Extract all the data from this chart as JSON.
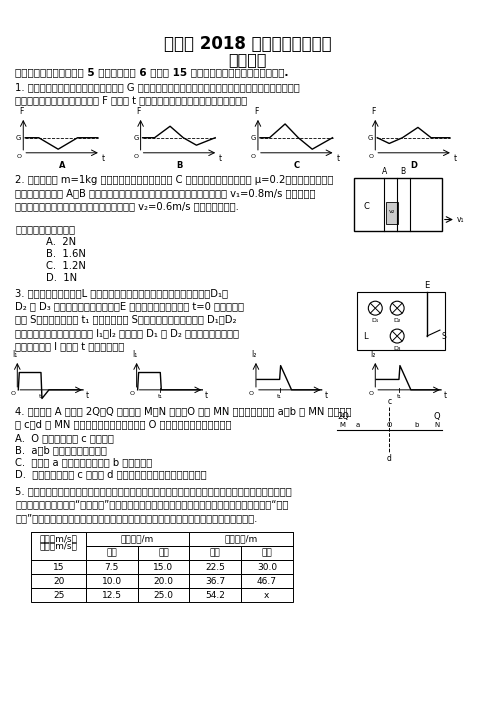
{
  "title1": "江苏省 2018 年剑高考调研测试",
  "title2": "物理试题",
  "bg_color": "#ffffff",
  "font_size_title": 12,
  "table_col1_header": "速度（m/s）",
  "table_header2": "思考距离/m",
  "table_header3": "制动距离/m",
  "table_sub1": "正常",
  "table_sub2": "酒后",
  "table_rows": [
    [
      "15",
      "7.5",
      "15.0",
      "22.5",
      "30.0"
    ],
    [
      "20",
      "10.0",
      "20.0",
      "36.7",
      "46.7"
    ],
    [
      "25",
      "12.5",
      "25.0",
      "54.2",
      "x"
    ]
  ]
}
